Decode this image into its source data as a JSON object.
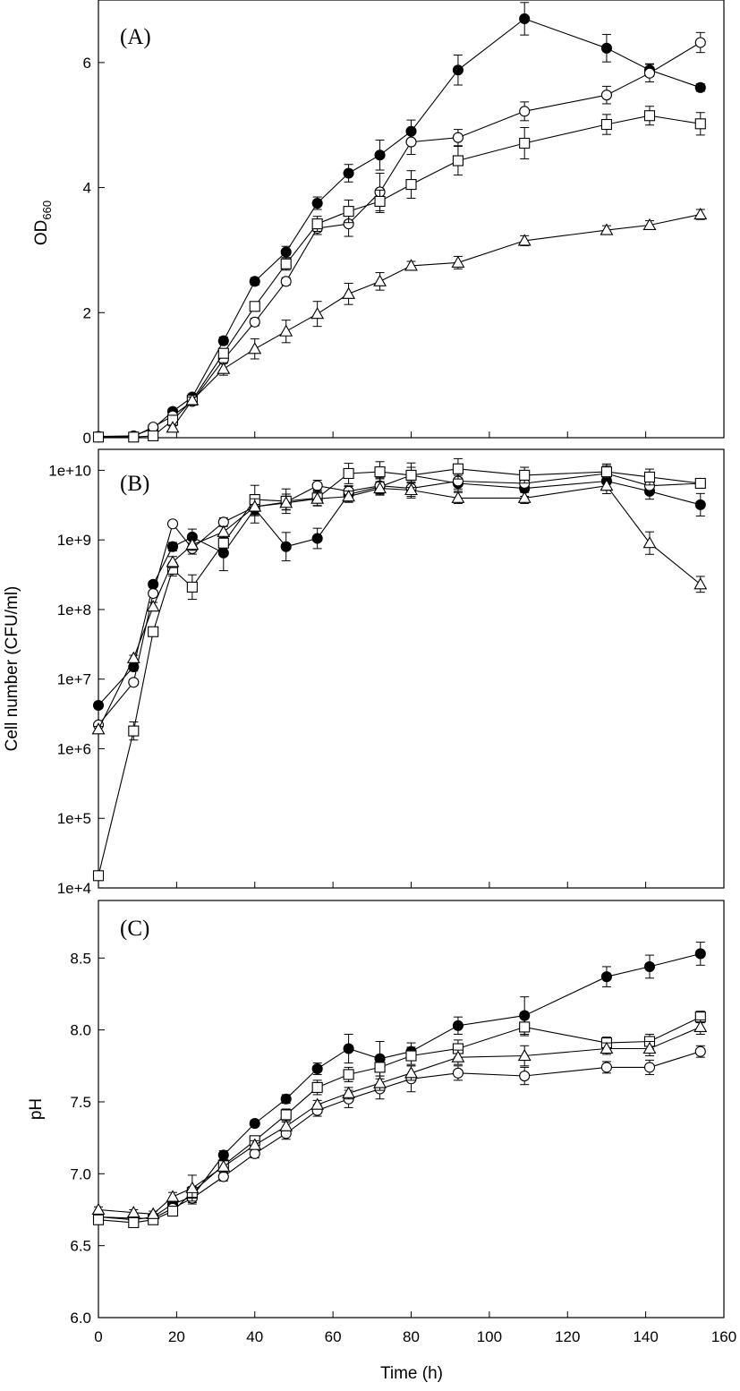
{
  "chart_data": [
    {
      "type": "line",
      "panel_label": "(A)",
      "ylabel": "OD",
      "ylabel_sub": "660",
      "xlim": [
        0,
        160
      ],
      "ylim": [
        0,
        7
      ],
      "yscale": "linear",
      "yticks": [
        0,
        2,
        4,
        6
      ],
      "ytick_labels": [
        "0",
        "2",
        "4",
        "6"
      ],
      "series": [
        {
          "marker": "filled-circle",
          "x": [
            0,
            9,
            14,
            19,
            24,
            32,
            40,
            48,
            56,
            64,
            72,
            80,
            92,
            109,
            130,
            141,
            154
          ],
          "y": [
            0.02,
            0.03,
            0.15,
            0.42,
            0.65,
            1.55,
            2.5,
            2.97,
            3.75,
            4.23,
            4.52,
            4.9,
            5.88,
            6.7,
            6.23,
            5.88,
            5.6
          ],
          "err": [
            0.02,
            0.02,
            0.03,
            0.04,
            0.05,
            0.06,
            0.06,
            0.09,
            0.1,
            0.14,
            0.24,
            0.18,
            0.24,
            0.26,
            0.22,
            0.1,
            0.06
          ]
        },
        {
          "marker": "open-circle",
          "x": [
            0,
            9,
            14,
            19,
            24,
            32,
            40,
            48,
            56,
            64,
            72,
            80,
            92,
            109,
            130,
            141,
            154
          ],
          "y": [
            0.01,
            0.02,
            0.17,
            0.35,
            0.58,
            1.25,
            1.85,
            2.5,
            3.35,
            3.42,
            3.93,
            4.73,
            4.8,
            5.22,
            5.48,
            5.83,
            6.32
          ],
          "err": [
            0.02,
            0.02,
            0.03,
            0.04,
            0.05,
            0.06,
            0.06,
            0.06,
            0.1,
            0.2,
            0.3,
            0.2,
            0.13,
            0.15,
            0.14,
            0.14,
            0.16
          ]
        },
        {
          "marker": "open-square",
          "x": [
            0,
            9,
            14,
            19,
            24,
            32,
            40,
            48,
            56,
            64,
            72,
            80,
            92,
            109,
            130,
            141,
            154
          ],
          "y": [
            0.01,
            0.01,
            0.03,
            0.28,
            0.6,
            1.35,
            2.1,
            2.78,
            3.42,
            3.62,
            3.78,
            4.05,
            4.43,
            4.71,
            5.01,
            5.15,
            5.02
          ],
          "err": [
            0.02,
            0.02,
            0.03,
            0.04,
            0.05,
            0.07,
            0.06,
            0.1,
            0.12,
            0.18,
            0.18,
            0.22,
            0.23,
            0.25,
            0.16,
            0.15,
            0.18
          ]
        },
        {
          "marker": "open-triangle",
          "x": [
            19,
            24,
            32,
            40,
            48,
            56,
            64,
            72,
            80,
            92,
            109,
            130,
            141,
            154
          ],
          "y": [
            0.16,
            0.6,
            1.1,
            1.42,
            1.7,
            1.98,
            2.3,
            2.5,
            2.75,
            2.8,
            3.15,
            3.32,
            3.4,
            3.57
          ],
          "err": [
            0.03,
            0.05,
            0.1,
            0.16,
            0.18,
            0.2,
            0.17,
            0.14,
            0.07,
            0.1,
            0.08,
            0.07,
            0.07,
            0.08
          ]
        }
      ]
    },
    {
      "type": "line",
      "panel_label": "(B)",
      "ylabel": "Cell number (CFU/ml)",
      "xlim": [
        0,
        160
      ],
      "ylim": [
        10000,
        20000000000
      ],
      "yscale": "log",
      "yticks": [
        10000,
        100000,
        1000000,
        10000000,
        100000000,
        1000000000,
        10000000000
      ],
      "ytick_labels": [
        "1e+4",
        "1e+5",
        "1e+6",
        "1e+7",
        "1e+8",
        "1e+9",
        "1e+10"
      ],
      "series": [
        {
          "marker": "filled-circle",
          "x": [
            0,
            9,
            14,
            19,
            24,
            32,
            40,
            48,
            56,
            64,
            72,
            80,
            92,
            109,
            130,
            141,
            154
          ],
          "y": [
            4200000,
            15000000,
            230000000,
            800000000,
            1100000000,
            650000000,
            2800000000,
            800000000,
            1050000000,
            4500000000,
            5800000000,
            8500000000,
            6500000000,
            5500000000,
            7000000000,
            5000000000,
            3200000000
          ],
          "err_factor": [
            1.05,
            1.15,
            1.1,
            1.15,
            1.3,
            1.8,
            1.6,
            1.6,
            1.4,
            1.3,
            1.3,
            1.3,
            1.3,
            1.3,
            1.35,
            1.3,
            1.45
          ]
        },
        {
          "marker": "open-circle",
          "x": [
            0,
            9,
            14,
            19,
            24,
            32,
            40,
            48,
            56,
            64,
            72,
            80,
            92,
            109,
            130,
            141,
            154
          ],
          "y": [
            2200000,
            9000000,
            170000000,
            1700000000,
            750000000,
            1800000000,
            3000000000,
            3500000000,
            6000000000,
            5000000000,
            6000000000,
            5500000000,
            7000000000,
            6500000000,
            9000000000,
            6000000000,
            6500000000
          ],
          "err_factor": [
            1.05,
            1.1,
            1.1,
            1.1,
            1.2,
            1.15,
            1.35,
            1.3,
            1.2,
            1.2,
            1.3,
            1.3,
            1.3,
            1.3,
            1.3,
            1.3,
            1.1
          ]
        },
        {
          "marker": "open-square",
          "x": [
            0,
            9,
            14,
            19,
            24,
            32,
            40,
            48,
            56,
            64,
            72,
            80,
            92,
            109,
            130,
            141,
            154
          ],
          "y": [
            15000,
            1800000,
            48000000,
            380000000,
            210000000,
            900000000,
            3800000000,
            3600000000,
            4000000000,
            9000000000,
            9500000000,
            8500000000,
            10500000000,
            8500000000,
            9500000000,
            8000000000,
            6500000000
          ],
          "err_factor": [
            1.05,
            1.35,
            1.15,
            1.25,
            1.5,
            1.3,
            1.6,
            1.5,
            1.3,
            1.4,
            1.4,
            1.5,
            1.4,
            1.3,
            1.3,
            1.3,
            1.1
          ]
        },
        {
          "marker": "open-triangle",
          "x": [
            0,
            9,
            14,
            19,
            24,
            32,
            40,
            48,
            56,
            64,
            72,
            80,
            92,
            109,
            130,
            141,
            154
          ],
          "y": [
            1900000,
            20000000,
            110000000,
            480000000,
            850000000,
            1300000000,
            3000000000,
            3400000000,
            3900000000,
            4200000000,
            5500000000,
            5200000000,
            4000000000,
            4000000000,
            6000000000,
            900000000,
            230000000
          ],
          "err_factor": [
            1.1,
            1.1,
            1.15,
            1.2,
            1.2,
            1.2,
            1.3,
            1.25,
            1.25,
            1.2,
            1.25,
            1.3,
            1.2,
            1.2,
            1.3,
            1.45,
            1.3
          ]
        }
      ]
    },
    {
      "type": "line",
      "panel_label": "(C)",
      "ylabel": "pH",
      "xlabel": "Time (h)",
      "xlim": [
        0,
        160
      ],
      "ylim": [
        6.0,
        8.9
      ],
      "yscale": "linear",
      "xticks": [
        0,
        20,
        40,
        60,
        80,
        100,
        120,
        140,
        160
      ],
      "xtick_labels": [
        "0",
        "20",
        "40",
        "60",
        "80",
        "100",
        "120",
        "140",
        "160"
      ],
      "yticks": [
        6.0,
        6.5,
        7.0,
        7.5,
        8.0,
        8.5
      ],
      "ytick_labels": [
        "6.0",
        "6.5",
        "7.0",
        "7.5",
        "8.0",
        "8.5"
      ],
      "series": [
        {
          "marker": "filled-circle",
          "x": [
            0,
            9,
            14,
            19,
            24,
            32,
            40,
            48,
            56,
            64,
            72,
            80,
            92,
            109,
            130,
            141,
            154
          ],
          "y": [
            6.7,
            6.68,
            6.7,
            6.79,
            6.84,
            7.13,
            7.35,
            7.52,
            7.73,
            7.87,
            7.8,
            7.85,
            8.03,
            8.1,
            8.37,
            8.44,
            8.53
          ],
          "err": [
            0.02,
            0.02,
            0.02,
            0.03,
            0.04,
            0.03,
            0.02,
            0.03,
            0.04,
            0.1,
            0.12,
            0.06,
            0.06,
            0.13,
            0.07,
            0.08,
            0.08
          ]
        },
        {
          "marker": "open-circle",
          "x": [
            0,
            9,
            14,
            19,
            24,
            32,
            40,
            48,
            56,
            64,
            72,
            80,
            92,
            109,
            130,
            141,
            154
          ],
          "y": [
            6.7,
            6.69,
            6.69,
            6.76,
            6.83,
            6.98,
            7.14,
            7.28,
            7.44,
            7.52,
            7.59,
            7.66,
            7.7,
            7.68,
            7.74,
            7.74,
            7.85
          ],
          "err": [
            0.02,
            0.02,
            0.02,
            0.03,
            0.04,
            0.03,
            0.03,
            0.04,
            0.04,
            0.06,
            0.07,
            0.09,
            0.05,
            0.06,
            0.04,
            0.05,
            0.04
          ]
        },
        {
          "marker": "open-square",
          "x": [
            0,
            9,
            14,
            19,
            24,
            32,
            40,
            48,
            56,
            64,
            72,
            80,
            92,
            109,
            130,
            141,
            154
          ],
          "y": [
            6.68,
            6.66,
            6.68,
            6.74,
            6.87,
            7.06,
            7.23,
            7.41,
            7.6,
            7.69,
            7.74,
            7.82,
            7.87,
            8.02,
            7.91,
            7.92,
            8.09
          ],
          "err": [
            0.02,
            0.02,
            0.02,
            0.03,
            0.04,
            0.03,
            0.03,
            0.04,
            0.05,
            0.05,
            0.06,
            0.06,
            0.06,
            0.06,
            0.04,
            0.05,
            0.04
          ]
        },
        {
          "marker": "open-triangle",
          "x": [
            0,
            9,
            14,
            19,
            24,
            32,
            40,
            48,
            56,
            64,
            72,
            80,
            92,
            109,
            130,
            141,
            154
          ],
          "y": [
            6.75,
            6.73,
            6.72,
            6.84,
            6.9,
            7.05,
            7.2,
            7.33,
            7.48,
            7.56,
            7.63,
            7.7,
            7.81,
            7.82,
            7.87,
            7.87,
            8.02
          ],
          "err": [
            0.02,
            0.02,
            0.02,
            0.03,
            0.09,
            0.04,
            0.03,
            0.03,
            0.03,
            0.04,
            0.05,
            0.05,
            0.05,
            0.07,
            0.04,
            0.05,
            0.05
          ]
        }
      ]
    }
  ]
}
